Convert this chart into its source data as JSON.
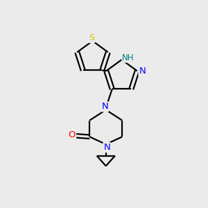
{
  "bg_color": "#ebebeb",
  "bond_color": "#000000",
  "n_color": "#0000ff",
  "o_color": "#ff0000",
  "s_color": "#cccc00",
  "nh_color": "#008080",
  "line_width": 1.6,
  "fig_size": [
    3.0,
    3.0
  ],
  "dpi": 100,
  "xlim": [
    0,
    10
  ],
  "ylim": [
    0,
    10
  ]
}
